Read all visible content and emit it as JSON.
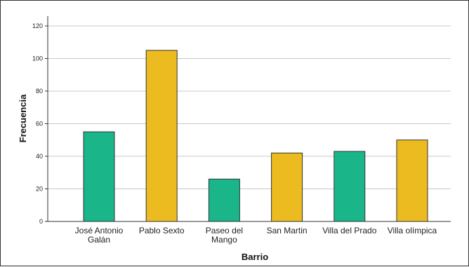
{
  "chart_data": {
    "type": "bar",
    "title": "",
    "xlabel": "Barrio",
    "ylabel": "Frecuencia",
    "ylim": [
      0,
      120
    ],
    "yticks": [
      0,
      20,
      40,
      60,
      80,
      100,
      120
    ],
    "grid": true,
    "categories": [
      [
        "José Antonio",
        "Galán"
      ],
      [
        "Pablo Sexto"
      ],
      [
        "Paseo del",
        "Mango"
      ],
      [
        "San Martin"
      ],
      [
        "Villa del Prado"
      ],
      [
        "Villa olímpica"
      ]
    ],
    "values": [
      55,
      105,
      26,
      42,
      43,
      50
    ],
    "colors": [
      "#1ab68a",
      "#ecbb1f",
      "#1ab68a",
      "#ecbb1f",
      "#1ab68a",
      "#ecbb1f"
    ]
  }
}
